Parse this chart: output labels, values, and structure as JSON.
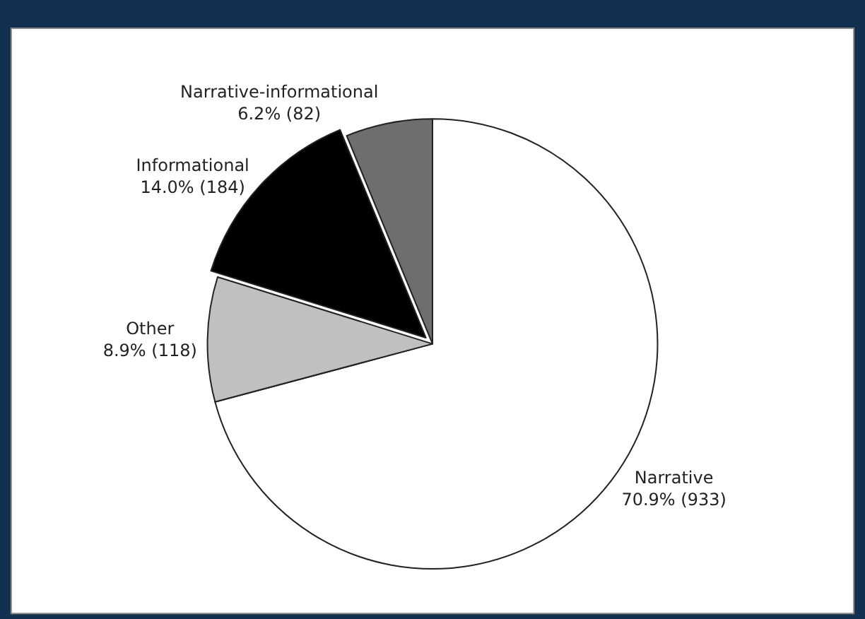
{
  "chart_data": {
    "type": "pie",
    "categories": [
      "Narrative",
      "Other",
      "Informational",
      "Narrative-informational"
    ],
    "values": [
      933,
      118,
      184,
      82
    ],
    "value_labels": [
      "70.9% (933)",
      "8.9% (118)",
      "14.0% (184)",
      "6.2% (82)"
    ],
    "colors": [
      "#ffffff",
      "#c0c0c0",
      "#000000",
      "#6e6e6e"
    ],
    "legend": false
  }
}
